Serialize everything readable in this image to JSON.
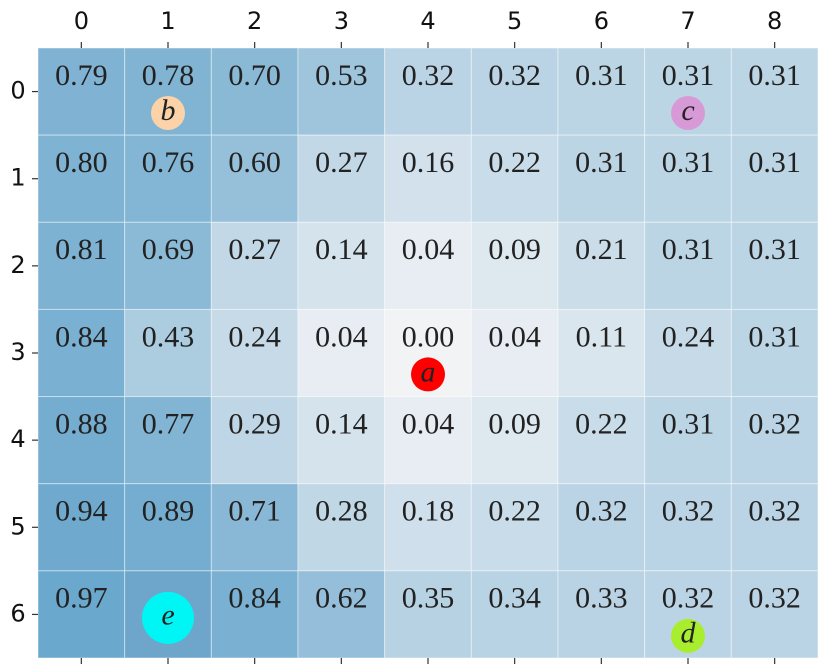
{
  "chart_data": {
    "type": "heatmap",
    "xticks": [
      0,
      1,
      2,
      3,
      4,
      5,
      6,
      7,
      8
    ],
    "yticks": [
      0,
      1,
      2,
      3,
      4,
      5,
      6
    ],
    "values": [
      [
        0.79,
        0.78,
        0.7,
        0.53,
        0.32,
        0.32,
        0.31,
        0.31,
        0.31
      ],
      [
        0.8,
        0.76,
        0.6,
        0.27,
        0.16,
        0.22,
        0.31,
        0.31,
        0.31
      ],
      [
        0.81,
        0.69,
        0.27,
        0.14,
        0.04,
        0.09,
        0.21,
        0.31,
        0.31
      ],
      [
        0.84,
        0.43,
        0.24,
        0.04,
        0.0,
        0.04,
        0.11,
        0.24,
        0.31
      ],
      [
        0.88,
        0.77,
        0.29,
        0.14,
        0.04,
        0.09,
        0.22,
        0.31,
        0.32
      ],
      [
        0.94,
        0.89,
        0.71,
        0.28,
        0.18,
        0.22,
        0.32,
        0.32,
        0.32
      ],
      [
        0.97,
        null,
        0.84,
        0.62,
        0.35,
        0.34,
        0.33,
        0.32,
        0.32
      ]
    ],
    "value_labels": [
      [
        "0.79",
        "0.78",
        "0.70",
        "0.53",
        "0.32",
        "0.32",
        "0.31",
        "0.31",
        "0.31"
      ],
      [
        "0.80",
        "0.76",
        "0.60",
        "0.27",
        "0.16",
        "0.22",
        "0.31",
        "0.31",
        "0.31"
      ],
      [
        "0.81",
        "0.69",
        "0.27",
        "0.14",
        "0.04",
        "0.09",
        "0.21",
        "0.31",
        "0.31"
      ],
      [
        "0.84",
        "0.43",
        "0.24",
        "0.04",
        "0.00",
        "0.04",
        "0.11",
        "0.24",
        "0.31"
      ],
      [
        "0.88",
        "0.77",
        "0.29",
        "0.14",
        "0.04",
        "0.09",
        "0.22",
        "0.31",
        "0.32"
      ],
      [
        "0.94",
        "0.89",
        "0.71",
        "0.28",
        "0.18",
        "0.22",
        "0.32",
        "0.32",
        "0.32"
      ],
      [
        "0.97",
        null,
        "0.84",
        "0.62",
        "0.35",
        "0.34",
        "0.33",
        "0.32",
        "0.32"
      ]
    ],
    "markers": [
      {
        "label": "a",
        "row": 3,
        "col": 4,
        "color": "#ff0000"
      },
      {
        "label": "b",
        "row": 0,
        "col": 1,
        "color": "#fcd3a8"
      },
      {
        "label": "c",
        "row": 0,
        "col": 7,
        "color": "#d89ad6"
      },
      {
        "label": "d",
        "row": 6,
        "col": 7,
        "color": "#a8ee2e"
      },
      {
        "label": "e",
        "row": 6,
        "col": 1,
        "color": "#00f5f5"
      }
    ]
  }
}
